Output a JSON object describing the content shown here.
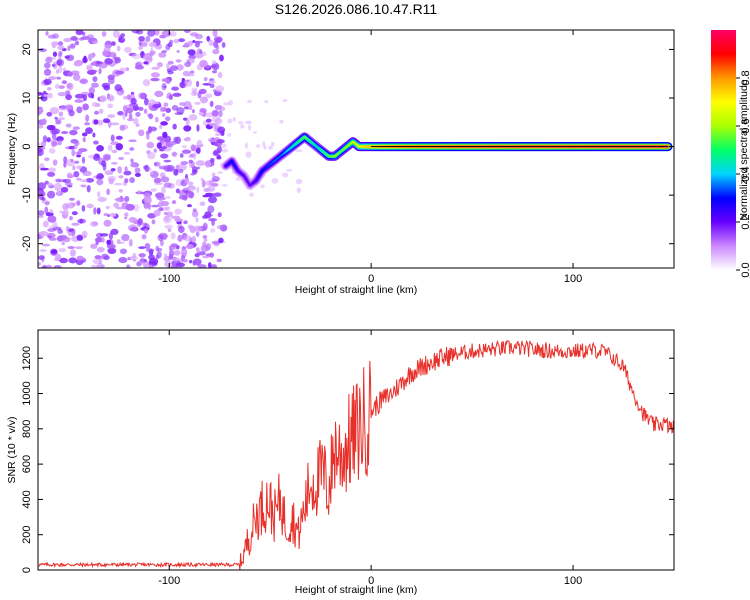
{
  "chart_data": [
    {
      "type": "heatmap",
      "title": "S126.2026.086.10.47.R11",
      "xlabel": "Height of straight line (km)",
      "ylabel": "Frequency (Hz)",
      "xlim": [
        -165,
        150
      ],
      "ylim": [
        -25,
        24
      ],
      "xticks": [
        -100,
        0,
        100
      ],
      "xtick_labels": [
        "-100",
        "0",
        "100"
      ],
      "yticks": [
        -20,
        -10,
        0,
        10,
        20
      ],
      "ytick_labels": [
        "-20",
        "-10",
        "0",
        "10",
        "20"
      ],
      "noise_region_x": [
        -165,
        -73
      ],
      "ridge": {
        "x": [
          -72,
          -69,
          -66,
          -63,
          -60,
          -57,
          -54,
          -51,
          -48,
          -45,
          -42,
          -39,
          -36,
          -33,
          -30,
          -27,
          -24,
          -21,
          -18,
          -15,
          -12,
          -9,
          -6,
          -3,
          0,
          5,
          10,
          20,
          30,
          50,
          80,
          110,
          147
        ],
        "y": [
          -4,
          -3,
          -5,
          -6,
          -8,
          -7,
          -5,
          -4,
          -3,
          -2,
          -1,
          0,
          1,
          2,
          1,
          0,
          -1,
          -2,
          -2,
          -1,
          0,
          1,
          0,
          0,
          0,
          0,
          0,
          0,
          0,
          0,
          0,
          0,
          0
        ],
        "amplitude": [
          0.25,
          0.3,
          0.25,
          0.22,
          0.2,
          0.25,
          0.3,
          0.32,
          0.35,
          0.35,
          0.4,
          0.45,
          0.5,
          0.55,
          0.5,
          0.45,
          0.5,
          0.55,
          0.6,
          0.55,
          0.6,
          0.65,
          0.7,
          0.75,
          0.8,
          0.85,
          0.88,
          0.9,
          0.92,
          0.95,
          0.97,
          0.98,
          1.0
        ]
      },
      "colorbar": {
        "label": "Normalized spectral amplitude",
        "range": [
          0.0,
          1.0
        ],
        "ticks": [
          0.0,
          0.2,
          0.4,
          0.6,
          0.8
        ],
        "tick_labels": [
          "0.0",
          "0.2",
          "0.4",
          "0.6",
          "0.8"
        ],
        "colors": [
          "#ffffff",
          "#cc88ff",
          "#6600ff",
          "#0000ff",
          "#00d4ff",
          "#00ff66",
          "#aaff00",
          "#ffff00",
          "#ff9900",
          "#ff0000",
          "#ff0066"
        ]
      }
    },
    {
      "type": "line",
      "title": "",
      "xlabel": "Height of straight line (km)",
      "ylabel": "SNR (10 * v/v)",
      "xlim": [
        -165,
        150
      ],
      "ylim": [
        0,
        1360
      ],
      "xticks": [
        -100,
        0,
        100
      ],
      "xtick_labels": [
        "-100",
        "0",
        "100"
      ],
      "yticks": [
        0,
        200,
        400,
        600,
        800,
        1000,
        1200
      ],
      "ytick_labels": [
        "0",
        "200",
        "400",
        "600",
        "800",
        "1000",
        "1200"
      ],
      "series": [
        {
          "name": "SNR",
          "color": "#e8302a",
          "x": [
            -165,
            -140,
            -110,
            -80,
            -65,
            -60,
            -57,
            -54,
            -51,
            -48,
            -45,
            -42,
            -39,
            -36,
            -33,
            -30,
            -27,
            -24,
            -21,
            -18,
            -15,
            -12,
            -9,
            -6,
            -3,
            0,
            5,
            10,
            15,
            20,
            25,
            30,
            35,
            40,
            50,
            60,
            70,
            80,
            90,
            100,
            110,
            115,
            120,
            125,
            130,
            135,
            140,
            145,
            150
          ],
          "y": [
            30,
            30,
            30,
            30,
            30,
            200,
            300,
            360,
            400,
            300,
            400,
            250,
            300,
            200,
            350,
            500,
            500,
            550,
            450,
            700,
            650,
            700,
            750,
            800,
            850,
            900,
            960,
            1000,
            1060,
            1120,
            1150,
            1180,
            1200,
            1220,
            1240,
            1250,
            1260,
            1250,
            1240,
            1240,
            1245,
            1240,
            1200,
            1150,
            1000,
            880,
            820,
            830,
            800
          ]
        }
      ]
    }
  ]
}
